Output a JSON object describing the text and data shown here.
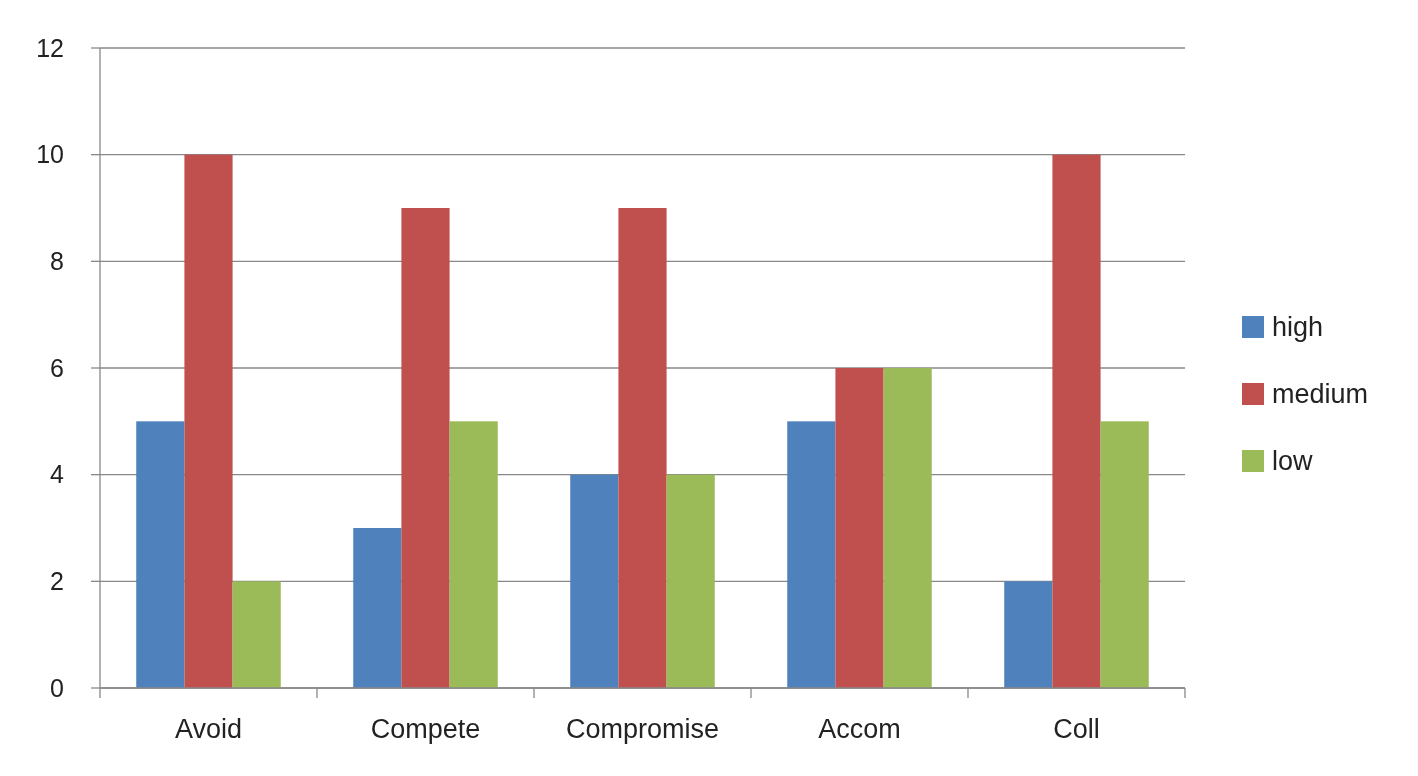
{
  "chart_data": {
    "type": "bar",
    "categories": [
      "Avoid",
      "Compete",
      "Compromise",
      "Accom",
      "Coll"
    ],
    "series": [
      {
        "name": "high",
        "color": "#4f81bd",
        "values": [
          5,
          3,
          4,
          5,
          2
        ]
      },
      {
        "name": "medium",
        "color": "#c0504d",
        "values": [
          10,
          9,
          9,
          6,
          10
        ]
      },
      {
        "name": "low",
        "color": "#9bbb59",
        "values": [
          2,
          5,
          4,
          6,
          5
        ]
      }
    ],
    "ylim": [
      0,
      12
    ],
    "yticks": [
      0,
      2,
      4,
      6,
      8,
      10,
      12
    ],
    "grid": "y",
    "legend": "right"
  }
}
